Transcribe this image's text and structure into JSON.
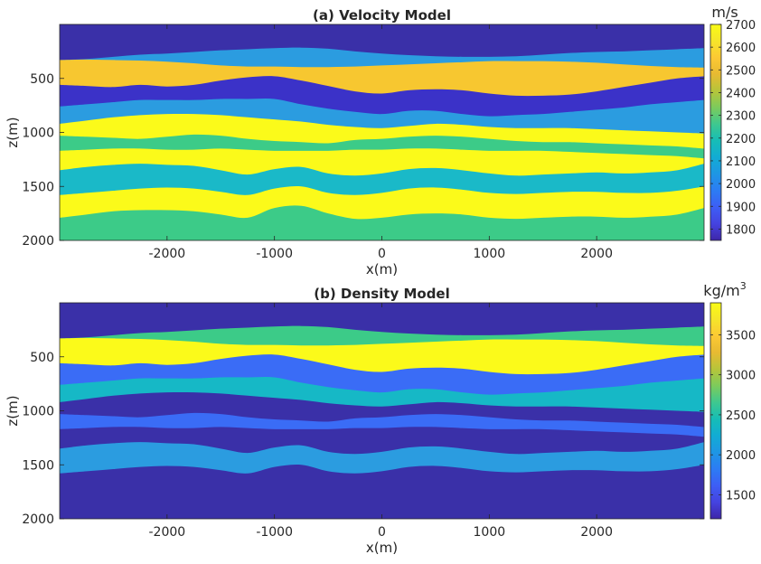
{
  "chart_data": [
    {
      "type": "heatmap",
      "title": "(a) Velocity Model",
      "xlabel": "x(m)",
      "ylabel": "z(m)",
      "xlim": [
        -3000,
        3000
      ],
      "ylim": [
        2000,
        0
      ],
      "xticks": [
        -2000,
        -1000,
        0,
        1000,
        2000
      ],
      "yticks": [
        500,
        1000,
        1500,
        2000
      ],
      "colorbar": {
        "label": "m/s",
        "ticks": [
          1800,
          1900,
          2000,
          2100,
          2200,
          2300,
          2400,
          2500,
          2600,
          2700
        ],
        "range": [
          1750,
          2700
        ]
      },
      "layers": [
        {
          "value": 1800,
          "color": "#3a30a8",
          "top": [
            0,
            0,
            0,
            0,
            0,
            0,
            0,
            0,
            0,
            0,
            0,
            0,
            0,
            0,
            0,
            0,
            0,
            0,
            0,
            0,
            0,
            0,
            0,
            0,
            0
          ]
        },
        {
          "value": 2080,
          "color": "#2b9ce0",
          "top": [
            330,
            320,
            300,
            280,
            270,
            255,
            240,
            230,
            220,
            215,
            225,
            250,
            270,
            285,
            295,
            300,
            300,
            295,
            280,
            265,
            255,
            250,
            240,
            230,
            220
          ]
        },
        {
          "value": 2570,
          "color": "#f7c730",
          "top": [
            330,
            325,
            330,
            335,
            345,
            360,
            380,
            390,
            390,
            395,
            395,
            390,
            380,
            370,
            360,
            350,
            340,
            340,
            340,
            345,
            355,
            370,
            385,
            395,
            400
          ]
        },
        {
          "value": 1850,
          "color": "#3b32c8",
          "top": [
            560,
            570,
            580,
            560,
            575,
            560,
            520,
            490,
            480,
            520,
            570,
            620,
            640,
            610,
            600,
            610,
            640,
            660,
            660,
            650,
            620,
            580,
            540,
            500,
            480
          ]
        },
        {
          "value": 2080,
          "color": "#2b9ce0",
          "top": [
            760,
            740,
            720,
            700,
            700,
            700,
            690,
            690,
            690,
            740,
            780,
            810,
            830,
            800,
            800,
            830,
            850,
            840,
            830,
            810,
            790,
            770,
            740,
            720,
            700
          ]
        },
        {
          "value": 2700,
          "color": "#fbfa1a",
          "top": [
            920,
            890,
            860,
            840,
            830,
            830,
            840,
            860,
            880,
            900,
            930,
            950,
            960,
            940,
            920,
            930,
            950,
            960,
            960,
            960,
            970,
            980,
            990,
            1000,
            1010
          ]
        },
        {
          "value": 2300,
          "color": "#3ccb88",
          "top": [
            1030,
            1040,
            1050,
            1060,
            1040,
            1020,
            1030,
            1060,
            1080,
            1090,
            1100,
            1070,
            1060,
            1040,
            1030,
            1040,
            1060,
            1080,
            1090,
            1090,
            1100,
            1110,
            1120,
            1130,
            1150
          ]
        },
        {
          "value": 2700,
          "color": "#fbfa1a",
          "top": [
            1170,
            1160,
            1150,
            1150,
            1160,
            1160,
            1150,
            1160,
            1170,
            1170,
            1170,
            1160,
            1160,
            1150,
            1150,
            1160,
            1170,
            1170,
            1170,
            1180,
            1190,
            1200,
            1210,
            1220,
            1240
          ]
        },
        {
          "value": 2190,
          "color": "#1ab9c8",
          "top": [
            1350,
            1320,
            1300,
            1290,
            1300,
            1310,
            1350,
            1390,
            1340,
            1320,
            1380,
            1400,
            1380,
            1340,
            1330,
            1350,
            1380,
            1400,
            1390,
            1380,
            1370,
            1380,
            1370,
            1350,
            1290
          ]
        },
        {
          "value": 2700,
          "color": "#fbfa1a",
          "top": [
            1580,
            1560,
            1540,
            1520,
            1510,
            1520,
            1550,
            1580,
            1520,
            1500,
            1560,
            1580,
            1560,
            1520,
            1510,
            1530,
            1560,
            1570,
            1560,
            1550,
            1550,
            1560,
            1560,
            1540,
            1500
          ]
        },
        {
          "value": 2300,
          "color": "#3ccb88",
          "top": [
            1790,
            1760,
            1730,
            1720,
            1720,
            1730,
            1760,
            1790,
            1700,
            1680,
            1750,
            1800,
            1790,
            1760,
            1750,
            1760,
            1790,
            1800,
            1790,
            1780,
            1780,
            1790,
            1780,
            1760,
            1700
          ]
        }
      ]
    },
    {
      "type": "heatmap",
      "title": "(b) Density Model",
      "xlabel": "x(m)",
      "ylabel": "z(m)",
      "xlim": [
        -3000,
        3000
      ],
      "ylim": [
        2000,
        0
      ],
      "xticks": [
        -2000,
        -1000,
        0,
        1000,
        2000
      ],
      "yticks": [
        500,
        1000,
        1500,
        2000
      ],
      "colorbar": {
        "label": "kg/m",
        "label_sup": "3",
        "ticks": [
          1500,
          2000,
          2500,
          3000,
          3500
        ],
        "range": [
          1200,
          3900
        ]
      },
      "layers": [
        {
          "value": 1350,
          "color": "#3a30a8",
          "top": [
            0,
            0,
            0,
            0,
            0,
            0,
            0,
            0,
            0,
            0,
            0,
            0,
            0,
            0,
            0,
            0,
            0,
            0,
            0,
            0,
            0,
            0,
            0,
            0,
            0
          ]
        },
        {
          "value": 2950,
          "color": "#3ccb88",
          "top": [
            330,
            320,
            300,
            280,
            270,
            255,
            240,
            230,
            220,
            215,
            225,
            250,
            270,
            285,
            295,
            300,
            300,
            295,
            280,
            265,
            255,
            250,
            240,
            230,
            220
          ]
        },
        {
          "value": 3900,
          "color": "#fbfa1a",
          "top": [
            330,
            325,
            330,
            335,
            345,
            360,
            380,
            390,
            390,
            395,
            395,
            390,
            380,
            370,
            360,
            350,
            340,
            340,
            340,
            345,
            355,
            370,
            385,
            395,
            400
          ]
        },
        {
          "value": 1900,
          "color": "#3a6cf6",
          "top": [
            560,
            570,
            580,
            560,
            575,
            560,
            520,
            490,
            480,
            520,
            570,
            620,
            640,
            610,
            600,
            610,
            640,
            660,
            660,
            650,
            620,
            580,
            540,
            500,
            480
          ]
        },
        {
          "value": 2500,
          "color": "#16b8c6",
          "top": [
            760,
            740,
            720,
            700,
            700,
            700,
            690,
            690,
            690,
            740,
            780,
            810,
            830,
            800,
            800,
            830,
            850,
            840,
            830,
            810,
            790,
            770,
            740,
            720,
            700
          ]
        },
        {
          "value": 1350,
          "color": "#3a30a8",
          "top": [
            920,
            890,
            860,
            840,
            830,
            830,
            840,
            860,
            880,
            900,
            930,
            950,
            960,
            940,
            920,
            930,
            950,
            960,
            960,
            960,
            970,
            980,
            990,
            1000,
            1010
          ]
        },
        {
          "value": 1900,
          "color": "#3a6cf6",
          "top": [
            1030,
            1040,
            1050,
            1060,
            1040,
            1020,
            1030,
            1060,
            1080,
            1090,
            1100,
            1070,
            1060,
            1040,
            1030,
            1040,
            1060,
            1080,
            1090,
            1090,
            1100,
            1110,
            1120,
            1130,
            1150
          ]
        },
        {
          "value": 1350,
          "color": "#3a30a8",
          "top": [
            1170,
            1160,
            1150,
            1150,
            1160,
            1160,
            1150,
            1160,
            1170,
            1170,
            1170,
            1160,
            1160,
            1150,
            1150,
            1160,
            1170,
            1170,
            1170,
            1180,
            1190,
            1200,
            1210,
            1220,
            1240
          ]
        },
        {
          "value": 2150,
          "color": "#2b9ce0",
          "top": [
            1350,
            1320,
            1300,
            1290,
            1300,
            1310,
            1350,
            1390,
            1340,
            1320,
            1380,
            1400,
            1380,
            1340,
            1330,
            1350,
            1380,
            1400,
            1390,
            1380,
            1370,
            1380,
            1370,
            1350,
            1290
          ]
        },
        {
          "value": 1350,
          "color": "#3a30a8",
          "top": [
            1580,
            1560,
            1540,
            1520,
            1510,
            1520,
            1550,
            1580,
            1520,
            1500,
            1560,
            1580,
            1560,
            1520,
            1510,
            1530,
            1560,
            1570,
            1560,
            1550,
            1550,
            1560,
            1560,
            1540,
            1500
          ]
        }
      ]
    }
  ],
  "colormap": [
    "#3e26a8",
    "#4543e0",
    "#3d5ef5",
    "#2c7cf4",
    "#1e96e4",
    "#12acd4",
    "#16bdb6",
    "#3ec88f",
    "#7ccb5c",
    "#b6c53a",
    "#e7ba32",
    "#fcc934",
    "#f6e52a",
    "#f9fb15"
  ]
}
